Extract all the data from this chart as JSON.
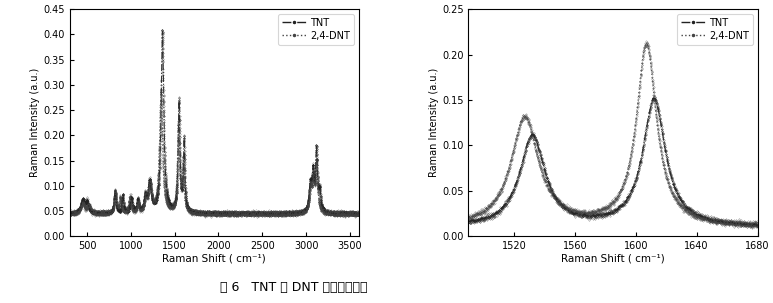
{
  "fig_width": 7.73,
  "fig_height": 3.03,
  "dpi": 100,
  "background_color": "#ffffff",
  "caption": "图 6   TNT 和 DNT 的拉曼光谱图",
  "caption_fontsize": 9,
  "plot1": {
    "xlim": [
      300,
      3600
    ],
    "ylim": [
      0.0,
      0.45
    ],
    "xticks": [
      500,
      1000,
      1500,
      2000,
      2500,
      3000,
      3500
    ],
    "yticks": [
      0.0,
      0.05,
      0.1,
      0.15,
      0.2,
      0.25,
      0.3,
      0.35,
      0.4,
      0.45
    ],
    "xlabel": "Raman Shift ( cm⁻¹)",
    "ylabel": "Raman Intensity (a.u.)",
    "legend": [
      "TNT",
      "2,4-DNT"
    ],
    "tnt_color": "#222222",
    "dnt_color": "#444444",
    "baseline": 0.045
  },
  "plot2": {
    "xlim": [
      1490,
      1680
    ],
    "ylim": [
      0.0,
      0.25
    ],
    "xticks": [
      1520,
      1560,
      1600,
      1640,
      1680
    ],
    "yticks": [
      0.0,
      0.05,
      0.1,
      0.15,
      0.2,
      0.25
    ],
    "xlabel": "Raman Shift ( cm⁻¹)",
    "ylabel": "Raman Intensity (a.u.)",
    "legend": [
      "TNT",
      "2,4-DNT"
    ],
    "tnt_color": "#222222",
    "dnt_color": "#444444",
    "baseline": 0.01
  }
}
